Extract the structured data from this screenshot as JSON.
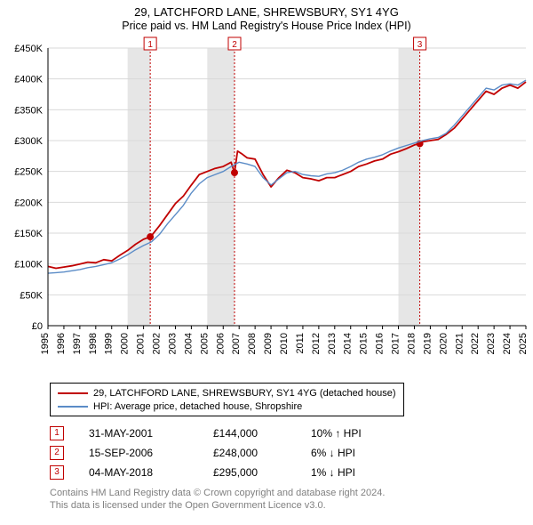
{
  "title": {
    "main": "29, LATCHFORD LANE, SHREWSBURY, SY1 4YG",
    "sub": "Price paid vs. HM Land Registry's House Price Index (HPI)"
  },
  "chart": {
    "type": "line",
    "background_color": "#ffffff",
    "plot_border_color": "#000000",
    "yaxis": {
      "min": 0,
      "max": 450000,
      "step": 50000,
      "labels": [
        "£0",
        "£50K",
        "£100K",
        "£150K",
        "£200K",
        "£250K",
        "£300K",
        "£350K",
        "£400K",
        "£450K"
      ],
      "label_color": "#000000",
      "label_fontsize": 11,
      "grid_color": "#d9d9d9"
    },
    "xaxis": {
      "min": 1995,
      "max": 2025,
      "ticks": [
        1995,
        1996,
        1997,
        1998,
        1999,
        2000,
        2001,
        2002,
        2003,
        2004,
        2005,
        2006,
        2007,
        2008,
        2009,
        2010,
        2011,
        2012,
        2013,
        2014,
        2015,
        2016,
        2017,
        2018,
        2019,
        2020,
        2021,
        2022,
        2023,
        2024,
        2025
      ],
      "label_color": "#000000",
      "label_fontsize": 11,
      "label_rotation": -90
    },
    "vertical_bands": [
      {
        "from": 2000.0,
        "to": 2001.42,
        "fill": "#e6e6e6"
      },
      {
        "from": 2005.0,
        "to": 2006.71,
        "fill": "#e6e6e6"
      },
      {
        "from": 2017.0,
        "to": 2018.34,
        "fill": "#e6e6e6"
      }
    ],
    "marker_lines": [
      {
        "x": 2001.42,
        "color": "#c00000",
        "dash": "2,2"
      },
      {
        "x": 2006.71,
        "color": "#c00000",
        "dash": "2,2"
      },
      {
        "x": 2018.34,
        "color": "#c00000",
        "dash": "2,2"
      }
    ],
    "marker_labels": [
      {
        "x": 2001.42,
        "n": "1"
      },
      {
        "x": 2006.71,
        "n": "2"
      },
      {
        "x": 2018.34,
        "n": "3"
      }
    ],
    "series": [
      {
        "name": "29, LATCHFORD LANE, SHREWSBURY, SY1 4YG (detached house)",
        "color": "#c00000",
        "width": 1.8,
        "points": [
          [
            1995.0,
            96000
          ],
          [
            1995.5,
            93000
          ],
          [
            1996.0,
            95000
          ],
          [
            1996.5,
            97000
          ],
          [
            1997.0,
            100000
          ],
          [
            1997.5,
            103000
          ],
          [
            1998.0,
            102000
          ],
          [
            1998.5,
            107000
          ],
          [
            1999.0,
            105000
          ],
          [
            1999.5,
            114000
          ],
          [
            2000.0,
            122000
          ],
          [
            2000.5,
            132000
          ],
          [
            2001.0,
            140000
          ],
          [
            2001.42,
            144000
          ],
          [
            2001.5,
            146000
          ],
          [
            2002.0,
            162000
          ],
          [
            2002.5,
            180000
          ],
          [
            2003.0,
            198000
          ],
          [
            2003.5,
            210000
          ],
          [
            2004.0,
            228000
          ],
          [
            2004.5,
            245000
          ],
          [
            2005.0,
            250000
          ],
          [
            2005.5,
            255000
          ],
          [
            2006.0,
            258000
          ],
          [
            2006.5,
            265000
          ],
          [
            2006.71,
            248000
          ],
          [
            2006.9,
            283000
          ],
          [
            2007.2,
            278000
          ],
          [
            2007.5,
            272000
          ],
          [
            2008.0,
            270000
          ],
          [
            2008.5,
            245000
          ],
          [
            2009.0,
            225000
          ],
          [
            2009.5,
            240000
          ],
          [
            2010.0,
            252000
          ],
          [
            2010.5,
            248000
          ],
          [
            2011.0,
            240000
          ],
          [
            2011.5,
            238000
          ],
          [
            2012.0,
            235000
          ],
          [
            2012.5,
            240000
          ],
          [
            2013.0,
            240000
          ],
          [
            2013.5,
            245000
          ],
          [
            2014.0,
            250000
          ],
          [
            2014.5,
            258000
          ],
          [
            2015.0,
            262000
          ],
          [
            2015.5,
            267000
          ],
          [
            2016.0,
            270000
          ],
          [
            2016.5,
            278000
          ],
          [
            2017.0,
            282000
          ],
          [
            2017.5,
            287000
          ],
          [
            2018.0,
            293000
          ],
          [
            2018.34,
            295000
          ],
          [
            2018.5,
            298000
          ],
          [
            2019.0,
            300000
          ],
          [
            2019.5,
            302000
          ],
          [
            2020.0,
            310000
          ],
          [
            2020.5,
            320000
          ],
          [
            2021.0,
            335000
          ],
          [
            2021.5,
            350000
          ],
          [
            2022.0,
            365000
          ],
          [
            2022.5,
            380000
          ],
          [
            2023.0,
            375000
          ],
          [
            2023.5,
            385000
          ],
          [
            2024.0,
            390000
          ],
          [
            2024.5,
            385000
          ],
          [
            2025.0,
            395000
          ]
        ],
        "markers": [
          {
            "x": 2001.42,
            "y": 144000
          },
          {
            "x": 2006.71,
            "y": 248000
          },
          {
            "x": 2018.34,
            "y": 295000
          }
        ]
      },
      {
        "name": "HPI: Average price, detached house, Shropshire",
        "color": "#5b8cc7",
        "width": 1.4,
        "points": [
          [
            1995.0,
            85000
          ],
          [
            1995.5,
            86000
          ],
          [
            1996.0,
            87000
          ],
          [
            1996.5,
            89000
          ],
          [
            1997.0,
            91000
          ],
          [
            1997.5,
            94000
          ],
          [
            1998.0,
            96000
          ],
          [
            1998.5,
            99000
          ],
          [
            1999.0,
            102000
          ],
          [
            1999.5,
            108000
          ],
          [
            2000.0,
            115000
          ],
          [
            2000.5,
            123000
          ],
          [
            2001.0,
            130000
          ],
          [
            2001.5,
            136000
          ],
          [
            2002.0,
            148000
          ],
          [
            2002.5,
            165000
          ],
          [
            2003.0,
            180000
          ],
          [
            2003.5,
            195000
          ],
          [
            2004.0,
            215000
          ],
          [
            2004.5,
            230000
          ],
          [
            2005.0,
            240000
          ],
          [
            2005.5,
            245000
          ],
          [
            2006.0,
            250000
          ],
          [
            2006.5,
            258000
          ],
          [
            2007.0,
            265000
          ],
          [
            2007.5,
            262000
          ],
          [
            2008.0,
            258000
          ],
          [
            2008.5,
            240000
          ],
          [
            2009.0,
            228000
          ],
          [
            2009.5,
            238000
          ],
          [
            2010.0,
            248000
          ],
          [
            2010.5,
            250000
          ],
          [
            2011.0,
            245000
          ],
          [
            2011.5,
            243000
          ],
          [
            2012.0,
            242000
          ],
          [
            2012.5,
            246000
          ],
          [
            2013.0,
            248000
          ],
          [
            2013.5,
            252000
          ],
          [
            2014.0,
            258000
          ],
          [
            2014.5,
            265000
          ],
          [
            2015.0,
            270000
          ],
          [
            2015.5,
            273000
          ],
          [
            2016.0,
            277000
          ],
          [
            2016.5,
            283000
          ],
          [
            2017.0,
            288000
          ],
          [
            2017.5,
            292000
          ],
          [
            2018.0,
            296000
          ],
          [
            2018.5,
            300000
          ],
          [
            2019.0,
            303000
          ],
          [
            2019.5,
            305000
          ],
          [
            2020.0,
            312000
          ],
          [
            2020.5,
            325000
          ],
          [
            2021.0,
            340000
          ],
          [
            2021.5,
            355000
          ],
          [
            2022.0,
            370000
          ],
          [
            2022.5,
            385000
          ],
          [
            2023.0,
            382000
          ],
          [
            2023.5,
            390000
          ],
          [
            2024.0,
            392000
          ],
          [
            2024.5,
            390000
          ],
          [
            2025.0,
            398000
          ]
        ]
      }
    ]
  },
  "legend": {
    "items": [
      {
        "color": "#c00000",
        "label": "29, LATCHFORD LANE, SHREWSBURY, SY1 4YG (detached house)"
      },
      {
        "color": "#5b8cc7",
        "label": "HPI: Average price, detached house, Shropshire"
      }
    ]
  },
  "markers_table": [
    {
      "n": "1",
      "date": "31-MAY-2001",
      "price": "£144,000",
      "hpi": "10% ↑ HPI"
    },
    {
      "n": "2",
      "date": "15-SEP-2006",
      "price": "£248,000",
      "hpi": "6% ↓ HPI"
    },
    {
      "n": "3",
      "date": "04-MAY-2018",
      "price": "£295,000",
      "hpi": "1% ↓ HPI"
    }
  ],
  "attribution": {
    "line1": "Contains HM Land Registry data © Crown copyright and database right 2024.",
    "line2": "This data is licensed under the Open Government Licence v3.0."
  }
}
